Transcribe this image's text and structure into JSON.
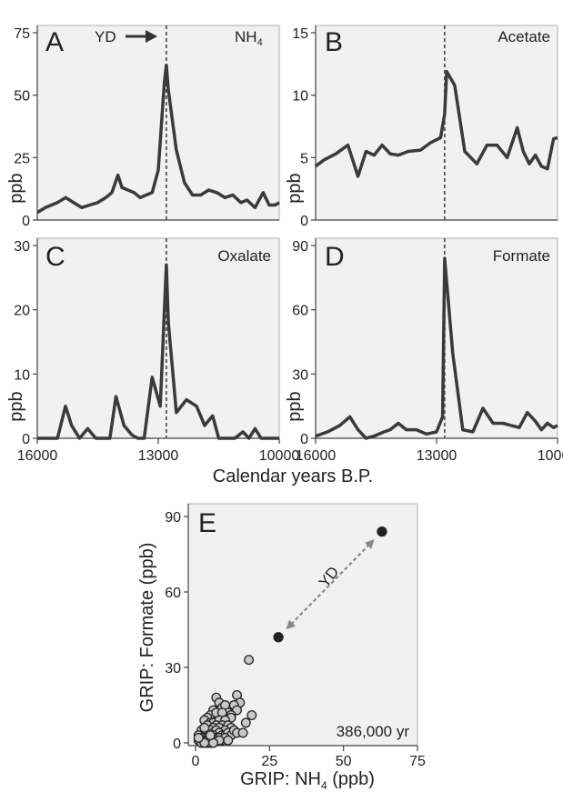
{
  "chart_data": [
    {
      "panel": "A",
      "type": "line",
      "label": "NH",
      "label_sub": "4",
      "annotation": "YD",
      "ylabel": "ppb",
      "xlim": [
        16000,
        10000
      ],
      "ylim": [
        0,
        75
      ],
      "yticks": [
        "0",
        "25",
        "50",
        "75"
      ],
      "xticks": [],
      "yd_line": 12800,
      "x": [
        16000,
        15800,
        15500,
        15300,
        15100,
        14900,
        14700,
        14500,
        14300,
        14150,
        14000,
        13900,
        13750,
        13600,
        13450,
        13300,
        13150,
        13000,
        12850,
        12800,
        12750,
        12550,
        12350,
        12150,
        11950,
        11750,
        11550,
        11350,
        11150,
        10950,
        10800,
        10600,
        10400,
        10250,
        10100,
        10000
      ],
      "values": [
        3,
        5,
        7,
        9,
        7,
        5,
        6,
        7,
        9,
        11,
        18,
        13,
        12,
        11,
        9,
        10,
        11,
        20,
        55,
        62,
        52,
        28,
        15,
        10,
        10,
        12,
        11,
        9,
        10,
        7,
        8,
        5,
        11,
        6,
        6,
        7
      ]
    },
    {
      "panel": "B",
      "type": "line",
      "label": "Acetate",
      "ylabel": "ppb",
      "xlim": [
        16000,
        10000
      ],
      "ylim": [
        0,
        15
      ],
      "yticks": [
        "0",
        "5",
        "10",
        "15"
      ],
      "xticks": [],
      "yd_line": 12800,
      "x": [
        16000,
        15800,
        15500,
        15200,
        14950,
        14750,
        14550,
        14350,
        14150,
        13950,
        13700,
        13400,
        13150,
        12900,
        12800,
        12750,
        12550,
        12300,
        12000,
        11750,
        11500,
        11250,
        11000,
        10850,
        10700,
        10550,
        10400,
        10250,
        10100,
        10000
      ],
      "values": [
        4.3,
        4.8,
        5.3,
        6,
        3.5,
        5.5,
        5.2,
        6,
        5.3,
        5.2,
        5.5,
        5.6,
        6.2,
        6.6,
        8.5,
        11.9,
        10.8,
        5.5,
        4.5,
        6,
        6,
        5,
        7.4,
        5.5,
        4.5,
        5.2,
        4.3,
        4.1,
        6.5,
        6.6
      ]
    },
    {
      "panel": "C",
      "type": "line",
      "label": "Oxalate",
      "ylabel": "ppb",
      "xlim": [
        16000,
        10000
      ],
      "ylim": [
        0,
        30
      ],
      "yticks": [
        "0",
        "10",
        "20",
        "30"
      ],
      "xticks": [
        "16000",
        "13000",
        "10000"
      ],
      "yd_line": 12800,
      "x": [
        16000,
        15700,
        15500,
        15300,
        15150,
        14950,
        14750,
        14550,
        14350,
        14200,
        14050,
        13850,
        13650,
        13500,
        13350,
        13150,
        12950,
        12800,
        12750,
        12550,
        12300,
        12050,
        11850,
        11650,
        11500,
        11300,
        11100,
        10900,
        10750,
        10600,
        10450,
        10300,
        10150,
        10000
      ],
      "values": [
        0,
        0,
        0,
        5,
        2,
        0,
        1.5,
        0,
        0,
        0,
        6.5,
        2,
        0.5,
        0,
        0,
        9.5,
        5,
        27,
        18,
        4,
        6,
        5,
        2,
        3.5,
        0,
        0,
        0,
        1,
        0,
        1.5,
        0,
        0,
        0,
        0
      ]
    },
    {
      "panel": "D",
      "type": "line",
      "label": "Formate",
      "ylabel": "ppb",
      "xlim": [
        16000,
        10000
      ],
      "ylim": [
        0,
        90
      ],
      "yticks": [
        "0",
        "30",
        "60",
        "90"
      ],
      "xticks": [
        "16000",
        "13000",
        "10000"
      ],
      "yd_line": 12800,
      "x": [
        16000,
        15700,
        15400,
        15150,
        14950,
        14750,
        14550,
        14300,
        14150,
        13950,
        13750,
        13500,
        13250,
        13000,
        12850,
        12800,
        12600,
        12350,
        12100,
        11850,
        11600,
        11350,
        11150,
        10950,
        10750,
        10550,
        10400,
        10250,
        10100,
        10000
      ],
      "values": [
        1,
        3,
        6,
        10,
        4,
        0,
        1,
        3,
        4,
        7,
        4,
        4,
        2,
        3,
        10,
        84,
        40,
        4,
        3,
        14,
        7,
        7,
        6,
        5,
        12,
        8,
        4,
        7,
        5,
        6
      ]
    },
    {
      "panel": "E",
      "type": "scatter",
      "xlabel_prefix": "GRIP:  NH",
      "xlabel_sub": "4",
      "xlabel_suffix": " (ppb)",
      "ylabel": "GRIP:  Formate (ppb)",
      "annotation": "YD",
      "note": "386,000 yr",
      "xlim": [
        0,
        75
      ],
      "ylim": [
        0,
        90
      ],
      "xticks": [
        "0",
        "25",
        "50",
        "75"
      ],
      "yticks": [
        "0",
        "30",
        "60",
        "90"
      ],
      "highlight": [
        {
          "x": 28,
          "y": 42
        },
        {
          "x": 63,
          "y": 84
        }
      ],
      "points": [
        [
          18,
          33
        ],
        [
          14,
          19
        ],
        [
          15,
          16
        ],
        [
          13,
          15
        ],
        [
          14,
          13
        ],
        [
          19,
          11
        ],
        [
          17,
          8
        ],
        [
          7,
          18
        ],
        [
          8,
          16
        ],
        [
          9,
          14
        ],
        [
          10,
          15
        ],
        [
          6,
          13
        ],
        [
          5,
          11
        ],
        [
          4,
          10
        ],
        [
          11,
          12
        ],
        [
          12,
          11
        ],
        [
          12,
          10
        ],
        [
          7,
          12
        ],
        [
          9,
          12
        ],
        [
          3,
          9
        ],
        [
          5,
          8
        ],
        [
          6,
          8
        ],
        [
          8,
          9
        ],
        [
          10,
          9
        ],
        [
          7,
          7
        ],
        [
          9,
          7
        ],
        [
          11,
          7
        ],
        [
          12,
          6
        ],
        [
          4,
          7
        ],
        [
          6,
          6
        ],
        [
          8,
          6
        ],
        [
          10,
          5
        ],
        [
          2,
          5
        ],
        [
          3,
          4
        ],
        [
          4,
          4
        ],
        [
          5,
          5
        ],
        [
          6,
          4
        ],
        [
          7,
          5
        ],
        [
          8,
          4
        ],
        [
          9,
          3
        ],
        [
          10,
          3
        ],
        [
          11,
          4
        ],
        [
          12,
          3
        ],
        [
          13,
          5
        ],
        [
          14,
          4
        ],
        [
          1,
          3
        ],
        [
          2,
          2
        ],
        [
          3,
          2
        ],
        [
          4,
          2
        ],
        [
          5,
          2
        ],
        [
          6,
          3
        ],
        [
          7,
          2
        ],
        [
          8,
          2
        ],
        [
          9,
          1
        ],
        [
          10,
          2
        ],
        [
          11,
          1
        ],
        [
          3,
          1
        ],
        [
          4,
          1
        ],
        [
          5,
          1
        ],
        [
          2,
          1
        ],
        [
          6,
          1
        ],
        [
          7,
          1
        ],
        [
          8,
          1
        ],
        [
          1,
          1
        ],
        [
          2,
          0
        ],
        [
          4,
          0
        ],
        [
          5,
          0
        ],
        [
          6,
          0
        ],
        [
          3,
          0
        ],
        [
          1,
          2
        ],
        [
          3,
          6
        ],
        [
          5,
          3
        ],
        [
          16,
          4
        ]
      ]
    }
  ],
  "shared": {
    "xlabel": "Calendar years B.P."
  }
}
